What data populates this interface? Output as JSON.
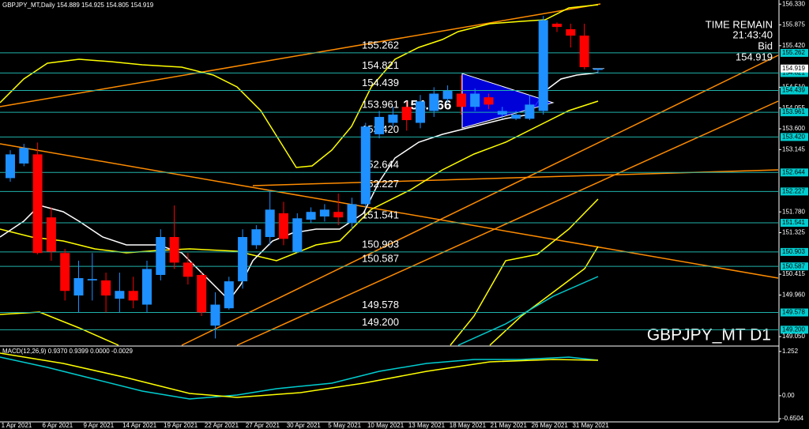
{
  "chart_data": {
    "type": "candlestick",
    "title": "GBPJPY_MT,Daily 154.889 154.925 154.805 154.919",
    "symbol_label": "GBPJPY_MT D1",
    "categories": [
      "1 Apr 2021",
      null,
      null,
      "6 Apr 2021",
      null,
      null,
      "9 Apr 2021",
      null,
      null,
      "14 Apr 2021",
      null,
      null,
      "19 Apr 2021",
      null,
      null,
      "22 Apr 2021",
      null,
      null,
      "27 Apr 2021",
      null,
      null,
      "30 Apr 2021",
      null,
      null,
      "5 May 2021",
      null,
      null,
      "10 May 2021",
      null,
      null,
      "13 May 2021",
      null,
      null,
      "18 May 2021",
      null,
      null,
      "21 May 2021",
      null,
      null,
      "26 May 2021",
      null,
      null,
      "31 May 2021",
      null
    ],
    "open": [
      152.52,
      152.84,
      153.04,
      151.66,
      150.88,
      149.95,
      150.28,
      150.28,
      149.88,
      150.05,
      149.75,
      150.4,
      151.23,
      150.67,
      150.4,
      149.29,
      149.67,
      150.26,
      151.05,
      151.23,
      151.75,
      150.91,
      151.61,
      151.68,
      151.78,
      151.54,
      151.95,
      153.48,
      153.73,
      154.08,
      153.73,
      153.99,
      154.25,
      154.37,
      154.08,
      154.29,
      153.91,
      153.82,
      153.82,
      153.99,
      155.9,
      155.78,
      155.64,
      154.889
    ],
    "high": [
      153.13,
      153.27,
      153.3,
      151.88,
      150.97,
      150.71,
      150.88,
      150.45,
      150.45,
      150.36,
      150.71,
      151.4,
      151.92,
      150.88,
      150.45,
      150.02,
      150.36,
      151.4,
      151.49,
      152.26,
      152.0,
      151.75,
      151.88,
      151.95,
      152.18,
      152.09,
      153.73,
      153.99,
      154.08,
      154.2,
      154.34,
      154.51,
      154.55,
      154.77,
      154.48,
      154.37,
      154.08,
      153.99,
      154.34,
      156.07,
      155.93,
      155.9,
      155.9,
      154.925
    ],
    "low": [
      152.44,
      152.78,
      150.85,
      150.71,
      149.84,
      149.58,
      149.84,
      149.58,
      149.58,
      149.67,
      149.58,
      150.28,
      150.53,
      150.19,
      149.5,
      149.01,
      149.64,
      150.1,
      150.97,
      151.05,
      151.05,
      150.88,
      151.54,
      151.57,
      151.49,
      151.4,
      151.88,
      153.39,
      153.65,
      153.56,
      153.61,
      153.86,
      154.17,
      153.91,
      153.99,
      154.03,
      153.82,
      153.79,
      153.79,
      153.91,
      155.72,
      155.38,
      154.9,
      154.805
    ],
    "close": [
      153.04,
      153.18,
      150.88,
      150.91,
      150.05,
      150.33,
      150.31,
      149.95,
      150.05,
      149.84,
      150.53,
      151.23,
      150.67,
      150.36,
      149.58,
      149.75,
      150.26,
      151.23,
      151.4,
      151.83,
      151.19,
      151.64,
      151.78,
      151.83,
      151.66,
      151.95,
      153.65,
      153.86,
      153.91,
      153.79,
      154.2,
      154.37,
      154.43,
      154.08,
      154.37,
      154.13,
      153.99,
      153.91,
      154.13,
      155.98,
      155.83,
      155.64,
      154.95,
      154.919
    ],
    "up_color": "#1e90ff",
    "down_color": "#ff0000",
    "ylim": [
      148.86,
      156.42
    ],
    "yticks": [
      {
        "value": 156.33,
        "label": "156.330"
      },
      155.875,
      {
        "value": 155.42,
        "label": "155.420"
      },
      {
        "value": 154.51,
        "label": "154.510"
      },
      154.055,
      {
        "value": 153.6,
        "label": "153.600"
      },
      153.145,
      {
        "value": 151.78,
        "label": "151.780"
      },
      151.325,
      150.415,
      {
        "value": 149.96,
        "label": "149.960"
      },
      {
        "value": 149.05,
        "label": "149.050"
      }
    ],
    "levels": [
      155.262,
      154.821,
      154.439,
      153.961,
      {
        "value": 153.42,
        "label": "153.420"
      },
      152.644,
      152.227,
      151.541,
      150.903,
      150.587,
      149.578,
      {
        "value": 149.2,
        "label": "149.200"
      }
    ],
    "level_color": "#20b2aa",
    "highlight_label": 154.266,
    "time_remain": {
      "title": "TIME REMAIN",
      "time": "21:43:40",
      "bid_label": "Bid",
      "bid": 154.919
    },
    "macd": {
      "title": "MACD(12,26,9) 0.9370 0.9399 0.0000 -0.0029",
      "ylim": [
        -0.74,
        1.36
      ],
      "yticks": [
        1.252,
        {
          "value": 0,
          "label": "0.00"
        },
        -0.6504
      ]
    }
  }
}
